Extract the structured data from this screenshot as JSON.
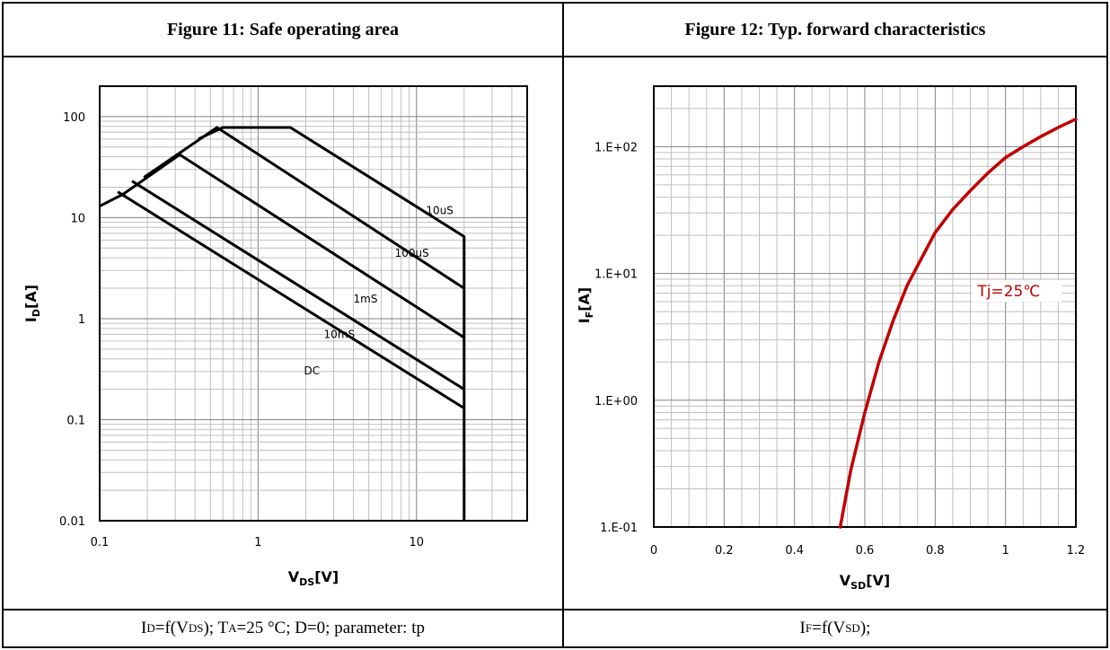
{
  "figure11": {
    "title": "Figure 11:  Safe operating area",
    "caption": {
      "p1": "I",
      "p1_sub": "D",
      "p2": "=f(V",
      "p2_sub": "DS",
      "p3": "); T",
      "p3_sub": "A",
      "p4": "=25 °C; D=0; parameter: tp"
    }
  },
  "figure12": {
    "title": "Figure 12:  Typ. forward characteristics",
    "caption": {
      "p1": "I",
      "p1_sub": "F",
      "p2": "=f(V",
      "p2_sub": "SD",
      "p3": ");"
    }
  },
  "chart_data": [
    {
      "type": "line",
      "x_scale": "log",
      "y_scale": "log",
      "xlim": [
        0.1,
        50
      ],
      "ylim": [
        0.01,
        200
      ],
      "x_ticks": [
        "0.1",
        "1",
        "10"
      ],
      "y_ticks": [
        "100",
        "10",
        "1",
        "0.1",
        "0.01"
      ],
      "xlabel": "V",
      "xlabel_sub": "DS",
      "xlabel_unit": "[V]",
      "ylabel": "I",
      "ylabel_sub": "D",
      "ylabel_unit": "[A]",
      "grid": true,
      "line_color": "#000000",
      "series": [
        {
          "name": "10uS",
          "points": [
            [
              0.42,
              60
            ],
            [
              0.6,
              78
            ],
            [
              1.6,
              78
            ],
            [
              20,
              6.5
            ],
            [
              20,
              0.01
            ]
          ]
        },
        {
          "name": "100uS",
          "points": [
            [
              0.19,
              25
            ],
            [
              0.55,
              78
            ],
            [
              20,
              2.0
            ]
          ]
        },
        {
          "name": "1mS",
          "points": [
            [
              0.1,
              13
            ],
            [
              0.14,
              17
            ],
            [
              0.32,
              42
            ],
            [
              20,
              0.65
            ]
          ]
        },
        {
          "name": "10mS",
          "points": [
            [
              0.16,
              23
            ],
            [
              20,
              0.2
            ]
          ]
        },
        {
          "name": "DC",
          "points": [
            [
              0.13,
              18
            ],
            [
              20,
              0.13
            ]
          ]
        }
      ],
      "annotations": [
        "10uS",
        "100uS",
        "1mS",
        "10mS",
        "DC"
      ]
    },
    {
      "type": "line",
      "x_scale": "linear",
      "y_scale": "log",
      "xlim": [
        0,
        1.2
      ],
      "ylim": [
        0.1,
        300
      ],
      "x_ticks": [
        "0",
        "0.2",
        "0.4",
        "0.6",
        "0.8",
        "1",
        "1.2"
      ],
      "y_ticks": [
        "1.E+02",
        "1.E+01",
        "1.E+00",
        "1.E-01"
      ],
      "xlabel": "V",
      "xlabel_sub": "SD",
      "xlabel_unit": "[V]",
      "ylabel": "I",
      "ylabel_sub": "F",
      "ylabel_unit": "[A]",
      "grid": true,
      "series": [
        {
          "name": "Tj=25℃",
          "color": "#c00000",
          "points": [
            [
              0.53,
              0.1
            ],
            [
              0.56,
              0.28
            ],
            [
              0.6,
              0.8
            ],
            [
              0.64,
              2
            ],
            [
              0.68,
              4.2
            ],
            [
              0.72,
              8
            ],
            [
              0.76,
              13
            ],
            [
              0.8,
              21
            ],
            [
              0.85,
              32
            ],
            [
              0.9,
              45
            ],
            [
              0.95,
              62
            ],
            [
              1.0,
              82
            ],
            [
              1.05,
              100
            ],
            [
              1.1,
              120
            ],
            [
              1.15,
              142
            ],
            [
              1.2,
              165
            ]
          ]
        }
      ],
      "legend_label": "Tj=25℃"
    }
  ]
}
